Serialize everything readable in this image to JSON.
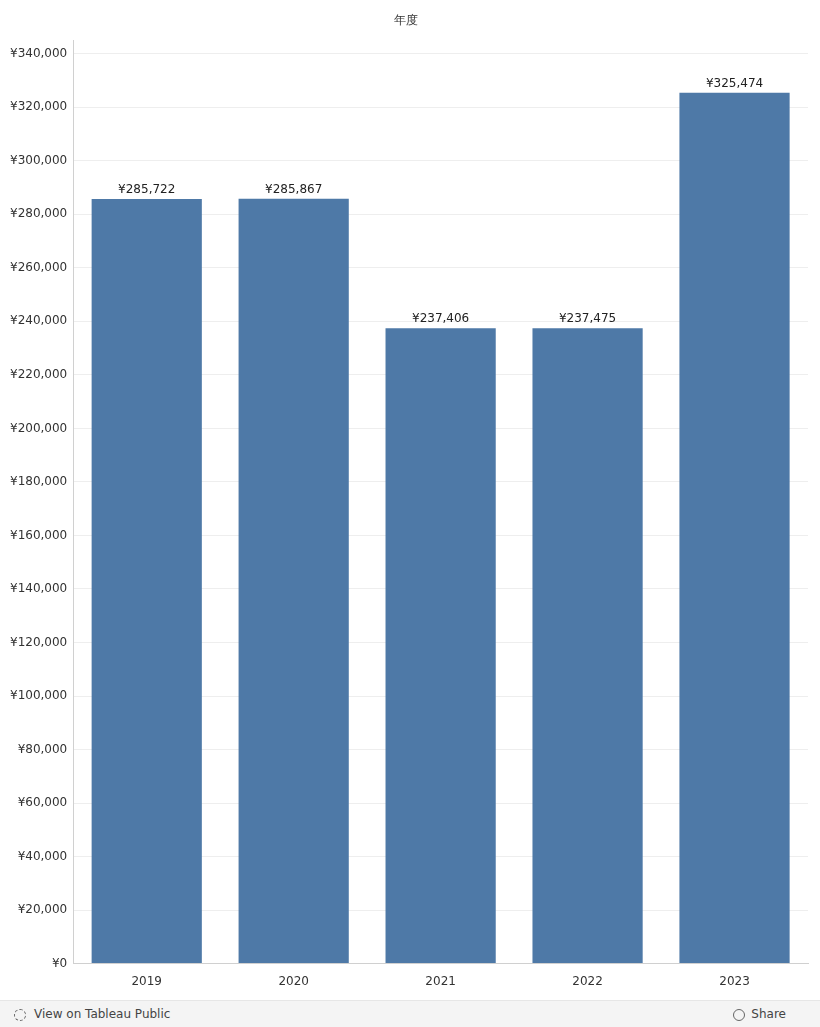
{
  "chart_data": {
    "type": "bar",
    "title": "年度",
    "categories": [
      "2019",
      "2020",
      "2021",
      "2022",
      "2023"
    ],
    "values": [
      285722,
      285867,
      237406,
      237475,
      325474
    ],
    "value_labels": [
      "¥285,722",
      "¥285,867",
      "¥237,406",
      "¥237,475",
      "¥325,474"
    ],
    "data_labels": true,
    "color": "#4e79a7",
    "ylim": [
      0,
      345000
    ],
    "yticks": [
      {
        "value": 0,
        "label": "¥0"
      },
      {
        "value": 20000,
        "label": "¥20,000"
      },
      {
        "value": 40000,
        "label": "¥40,000"
      },
      {
        "value": 60000,
        "label": "¥60,000"
      },
      {
        "value": 80000,
        "label": "¥80,000"
      },
      {
        "value": 100000,
        "label": "¥100,000"
      },
      {
        "value": 120000,
        "label": "¥120,000"
      },
      {
        "value": 140000,
        "label": "¥140,000"
      },
      {
        "value": 160000,
        "label": "¥160,000"
      },
      {
        "value": 180000,
        "label": "¥180,000"
      },
      {
        "value": 200000,
        "label": "¥200,000"
      },
      {
        "value": 220000,
        "label": "¥220,000"
      },
      {
        "value": 240000,
        "label": "¥240,000"
      },
      {
        "value": 260000,
        "label": "¥260,000"
      },
      {
        "value": 280000,
        "label": "¥280,000"
      },
      {
        "value": 300000,
        "label": "¥300,000"
      },
      {
        "value": 320000,
        "label": "¥320,000"
      },
      {
        "value": 340000,
        "label": "¥340,000"
      }
    ],
    "grid": true
  },
  "footer": {
    "link": "View on Tableau Public",
    "share": "Share"
  }
}
